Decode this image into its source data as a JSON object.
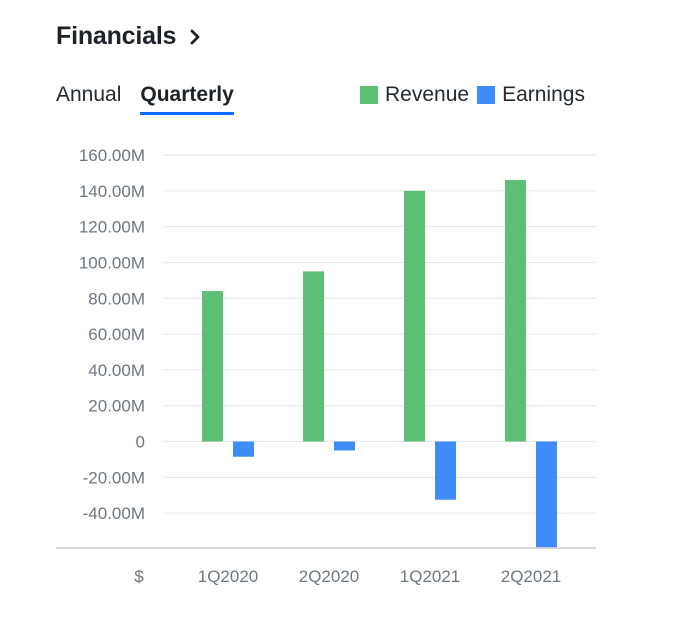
{
  "header": {
    "title": "Financials",
    "chevron_icon": "chevron-right-icon"
  },
  "tabs": [
    {
      "label": "Annual",
      "active": false
    },
    {
      "label": "Quarterly",
      "active": true
    }
  ],
  "colors": {
    "revenue": "#5cbf75",
    "earnings": "#3d8cf7",
    "accent": "#0f69ff",
    "grid": "#e4e6e8",
    "axis": "#c7ccd1"
  },
  "chart_data": {
    "type": "bar",
    "title": "",
    "currency_label": "$",
    "categories": [
      "1Q2020",
      "2Q2020",
      "1Q2021",
      "2Q2021"
    ],
    "series": [
      {
        "name": "Revenue",
        "values": [
          84000000,
          95000000,
          140000000,
          146000000
        ]
      },
      {
        "name": "Earnings",
        "values": [
          -8500000,
          -5000000,
          -32500000,
          -59000000
        ]
      }
    ],
    "ylim": [
      -60000000,
      160000000
    ],
    "y_ticks": [
      {
        "value": 160000000,
        "label": "160.00M"
      },
      {
        "value": 140000000,
        "label": "140.00M"
      },
      {
        "value": 120000000,
        "label": "120.00M"
      },
      {
        "value": 100000000,
        "label": "100.00M"
      },
      {
        "value": 80000000,
        "label": "80.00M"
      },
      {
        "value": 60000000,
        "label": "60.00M"
      },
      {
        "value": 40000000,
        "label": "40.00M"
      },
      {
        "value": 20000000,
        "label": "20.00M"
      },
      {
        "value": 0,
        "label": "0"
      },
      {
        "value": -20000000,
        "label": "-20.00M"
      },
      {
        "value": -40000000,
        "label": "-40.00M"
      }
    ],
    "grid": true,
    "legend_position": "top-right"
  }
}
